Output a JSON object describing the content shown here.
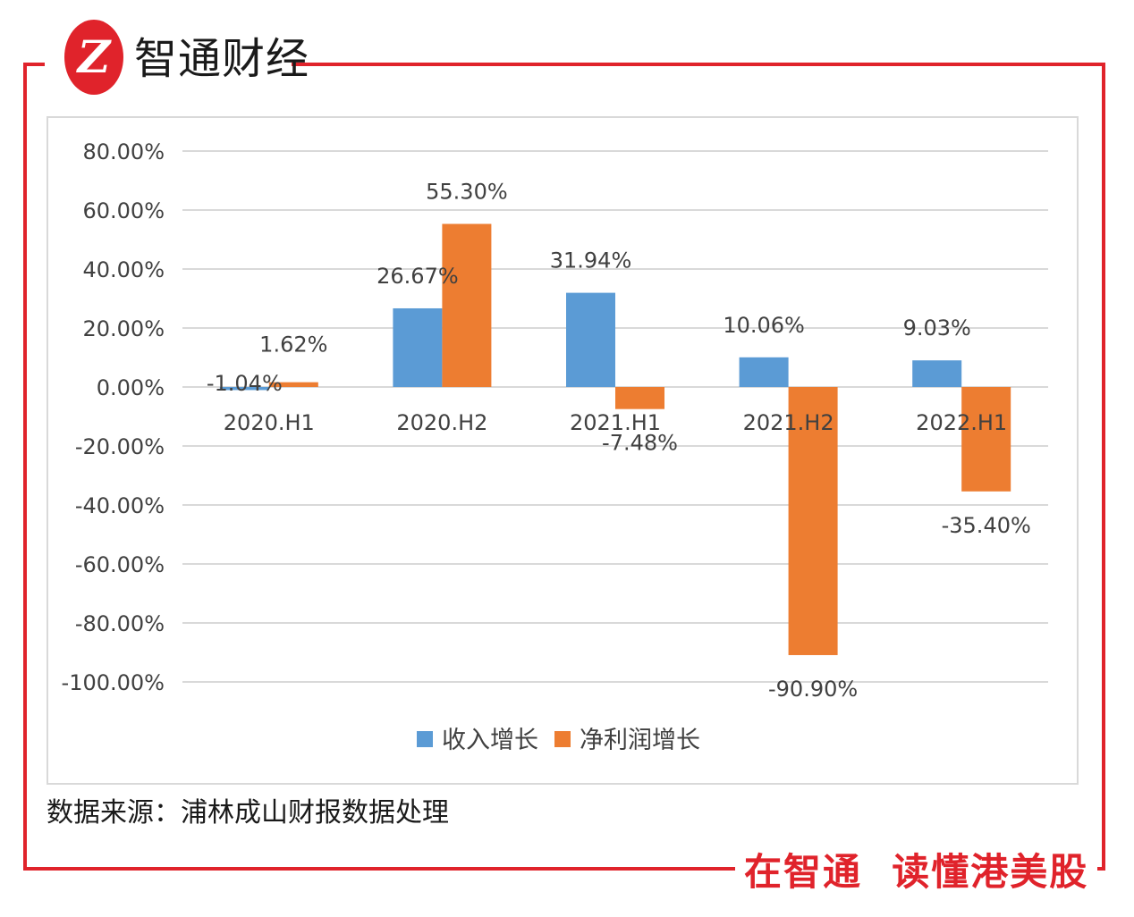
{
  "header": {
    "logo_mark": "Z",
    "brand_name": "智通财经"
  },
  "chart_data": {
    "type": "bar",
    "categories": [
      "2020.H1",
      "2020.H2",
      "2021.H1",
      "2021.H2",
      "2022.H1"
    ],
    "series": [
      {
        "name": "收入增长",
        "color": "#5b9bd5",
        "values": [
          -1.04,
          26.67,
          31.94,
          10.06,
          9.03
        ],
        "labels": [
          "-1.04%",
          "26.67%",
          "31.94%",
          "10.06%",
          "9.03%"
        ]
      },
      {
        "name": "净利润增长",
        "color": "#ed7d31",
        "values": [
          1.62,
          55.3,
          -7.48,
          -90.9,
          -35.4
        ],
        "labels": [
          "1.62%",
          "55.30%",
          "-7.48%",
          "-90.90%",
          "-35.40%"
        ]
      }
    ],
    "ylim": [
      -100,
      80
    ],
    "yticks": [
      80,
      60,
      40,
      20,
      0,
      -20,
      -40,
      -60,
      -80,
      -100
    ],
    "ytick_labels": [
      "80.00%",
      "60.00%",
      "40.00%",
      "20.00%",
      "0.00%",
      "-20.00%",
      "-40.00%",
      "-60.00%",
      "-80.00%",
      "-100.00%"
    ],
    "legend_position": "bottom",
    "grid": true
  },
  "footer": {
    "source": "数据来源：浦林成山财报数据处理",
    "slogan": "在智通  读懂港美股"
  },
  "colors": {
    "accent": "#e0232b",
    "grid": "#d9d9d9",
    "text": "#404040"
  }
}
